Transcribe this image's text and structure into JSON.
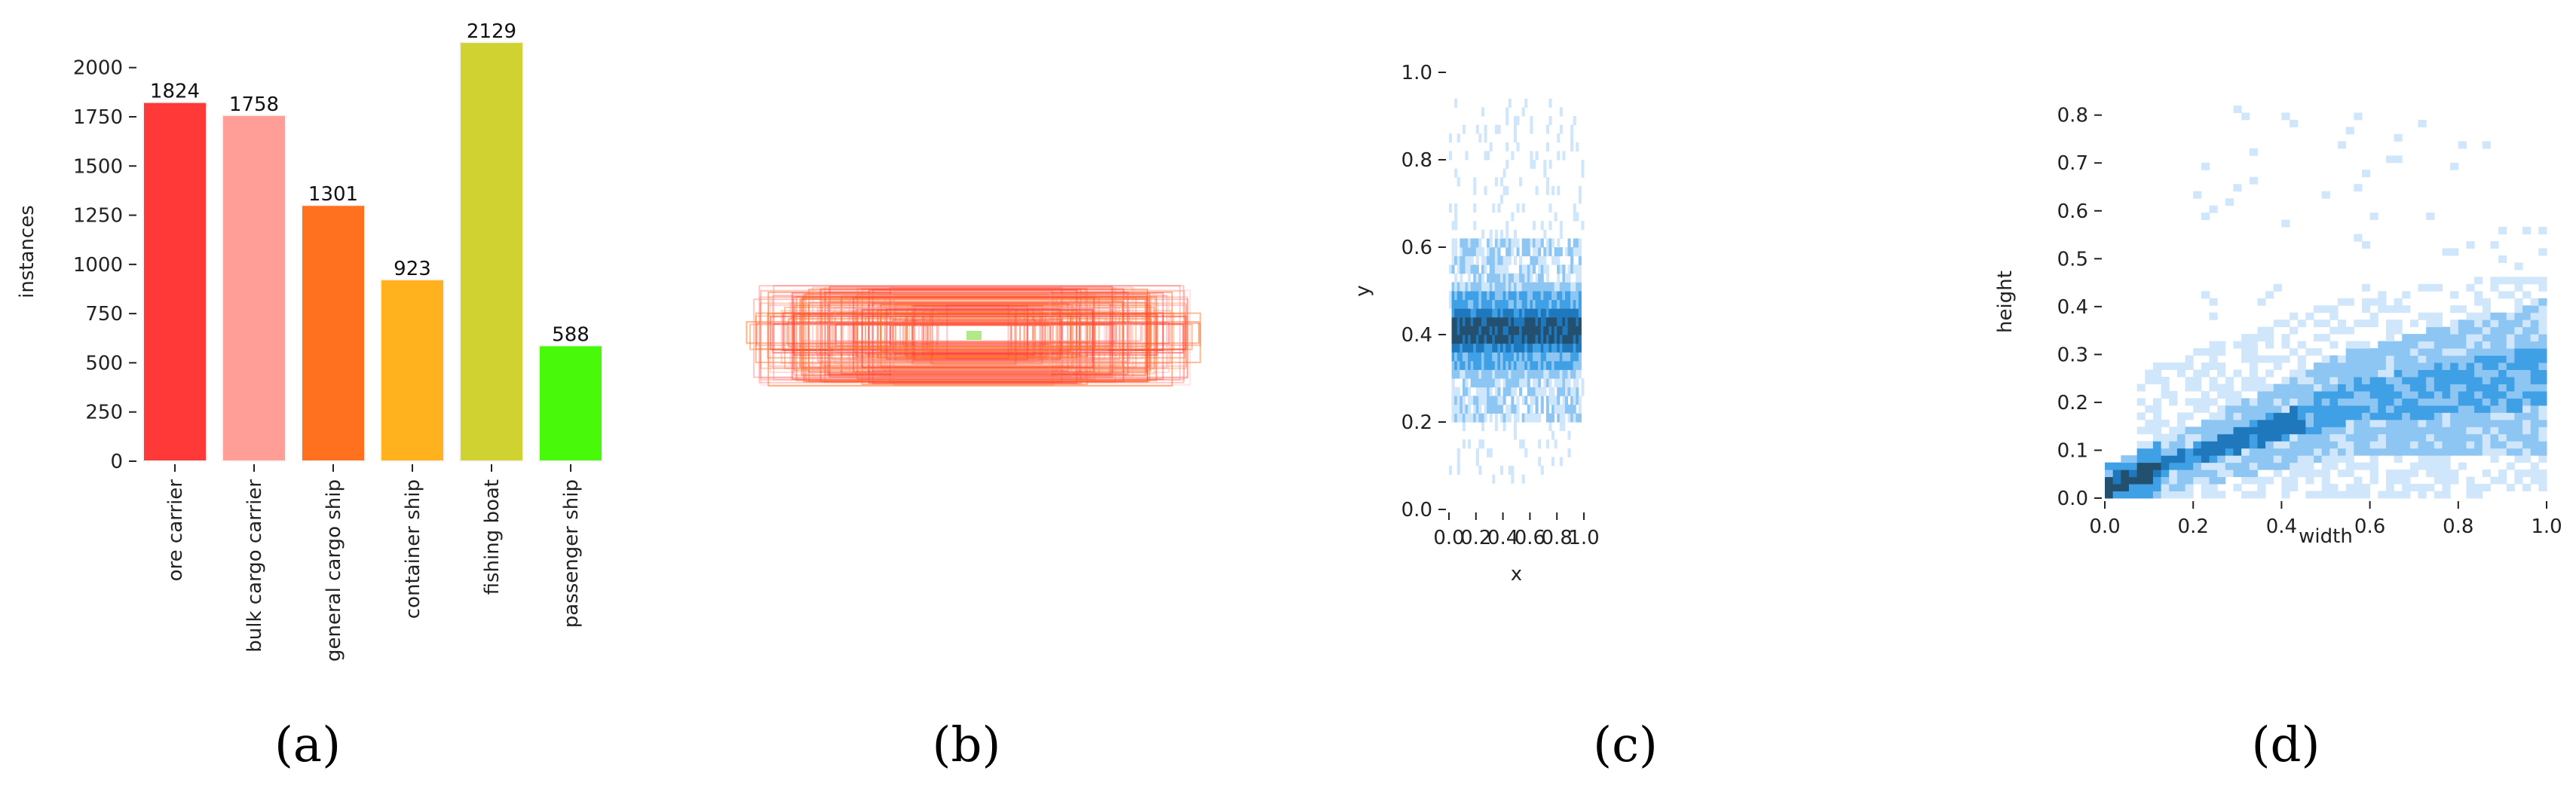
{
  "panels": {
    "a": {
      "label": "(a)"
    },
    "b": {
      "label": "(b)"
    },
    "c": {
      "label": "(c)"
    },
    "d": {
      "label": "(d)"
    }
  },
  "chart_data": [
    {
      "panel": "a",
      "type": "bar",
      "categories": [
        "ore carrier",
        "bulk cargo carrier",
        "general cargo ship",
        "container ship",
        "fishing boat",
        "passenger ship"
      ],
      "values": [
        1824,
        1758,
        1301,
        923,
        2129,
        588
      ],
      "colors": [
        "#ff3838",
        "#ff9d97",
        "#ff701f",
        "#ffb21d",
        "#cfd231",
        "#48f90a"
      ],
      "xlabel": "",
      "ylabel": "instances",
      "ylim": [
        0,
        2129
      ],
      "yticks": [
        0,
        250,
        500,
        750,
        1000,
        1250,
        1500,
        1750,
        2000
      ],
      "grid": false
    },
    {
      "panel": "b",
      "type": "other",
      "description_kind": "overlaid bounding boxes",
      "colors": [
        "#ff3838",
        "#ff701f",
        "#ff9d97"
      ]
    },
    {
      "panel": "c",
      "type": "heatmap",
      "xlabel": "x",
      "ylabel": "y",
      "xlim": [
        0.0,
        1.0
      ],
      "ylim": [
        0.0,
        1.0
      ],
      "xticks": [
        "0.0",
        "0.2",
        "0.4",
        "0.6",
        "0.8",
        "1.0"
      ],
      "yticks": [
        "0.0",
        "0.2",
        "0.4",
        "0.6",
        "0.8",
        "1.0"
      ],
      "dense_band": {
        "x": [
          0.02,
          0.98
        ],
        "y_center": 0.41,
        "y_range": [
          0.3,
          0.52
        ]
      },
      "colormap": [
        "#cfe6fb",
        "#8ec6f3",
        "#3fa0e6",
        "#1f78bb",
        "#24506f"
      ],
      "grid": false
    },
    {
      "panel": "d",
      "type": "heatmap",
      "xlabel": "width",
      "ylabel": "height",
      "xlim": [
        0.0,
        1.0
      ],
      "ylim": [
        0.0,
        0.82
      ],
      "xticks": [
        "0.0",
        "0.2",
        "0.4",
        "0.6",
        "0.8",
        "1.0"
      ],
      "yticks": [
        "0.0",
        "0.1",
        "0.2",
        "0.3",
        "0.4",
        "0.5",
        "0.6",
        "0.7",
        "0.8"
      ],
      "dense_ridge": {
        "from": [
          0.02,
          0.03
        ],
        "to": [
          0.55,
          0.2
        ]
      },
      "colormap": [
        "#cfe6fb",
        "#8ec6f3",
        "#3fa0e6",
        "#1f78bb",
        "#24506f"
      ],
      "grid": false
    }
  ]
}
